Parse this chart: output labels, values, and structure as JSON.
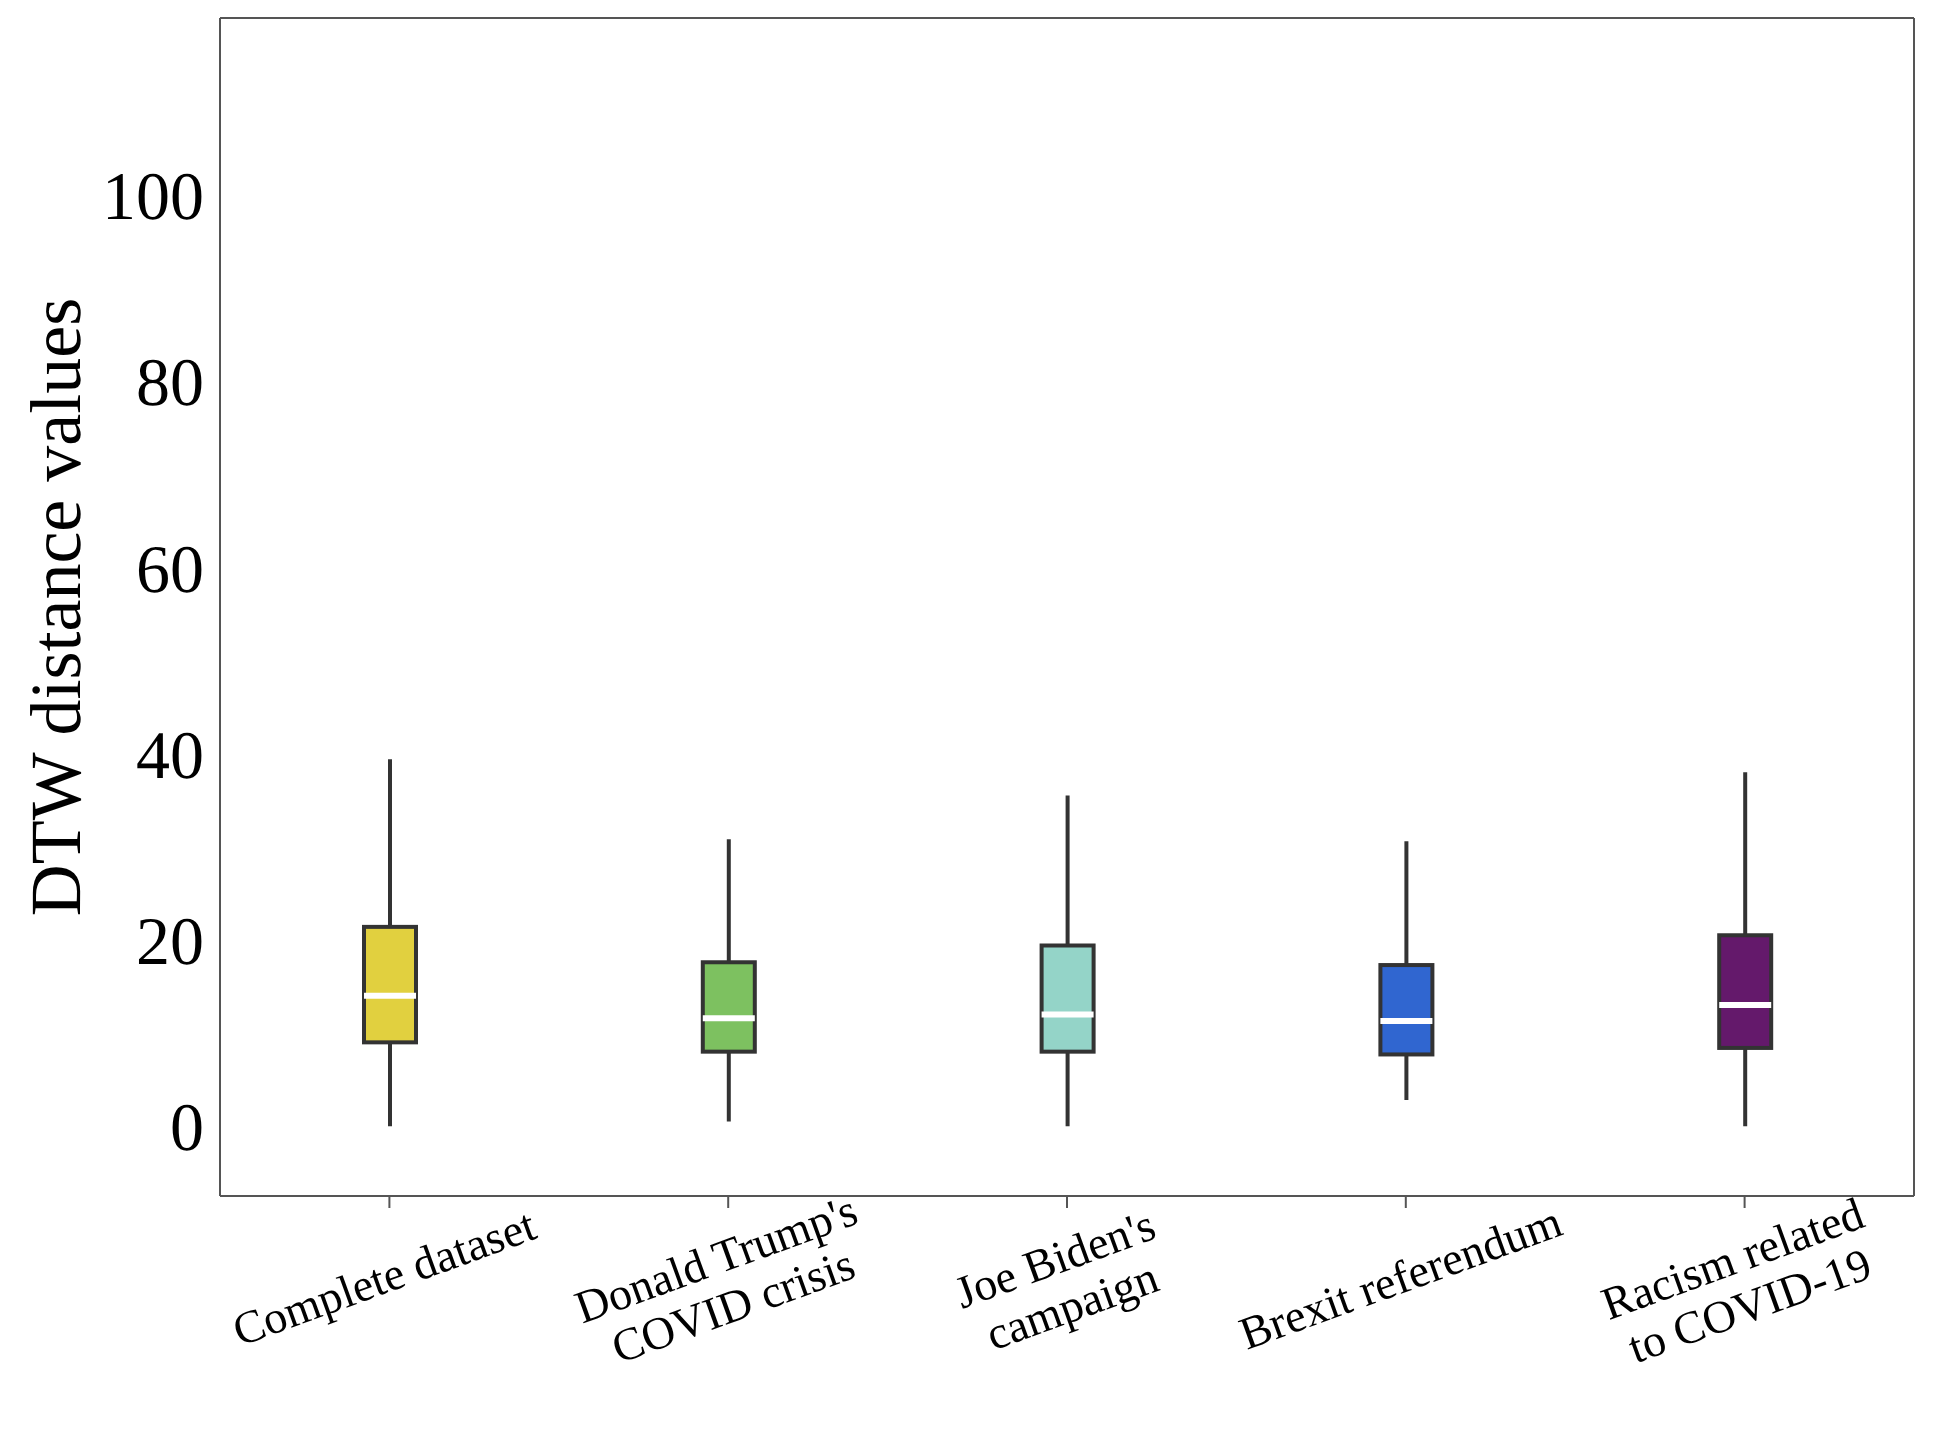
{
  "chart_data": {
    "type": "box",
    "ylabel": "DTW distance values",
    "categories": [
      "Complete dataset",
      "Donald Trump's\nCOVID crisis",
      "Joe Biden's\ncampaign",
      "Brexit referendum",
      "Racism related\nto COVID-19"
    ],
    "colors": [
      "#e1d03f",
      "#7dc160",
      "#94d4c8",
      "#3066d0",
      "#64196b"
    ],
    "boxes": [
      {
        "low": 0,
        "q1": 9,
        "median": 14,
        "q3": 21.4,
        "high": 39.4
      },
      {
        "low": 0.5,
        "q1": 8,
        "median": 11.6,
        "q3": 17.6,
        "high": 30.8
      },
      {
        "low": 0,
        "q1": 8,
        "median": 12,
        "q3": 19.4,
        "high": 35.5
      },
      {
        "low": 2.8,
        "q1": 7.7,
        "median": 11.3,
        "q3": 17.3,
        "high": 30.6
      },
      {
        "low": 0,
        "q1": 8.4,
        "median": 13,
        "q3": 20.5,
        "high": 38
      }
    ],
    "ylim": [
      -7.5,
      119
    ],
    "yticks": [
      0,
      20,
      40,
      60,
      80,
      100
    ]
  }
}
